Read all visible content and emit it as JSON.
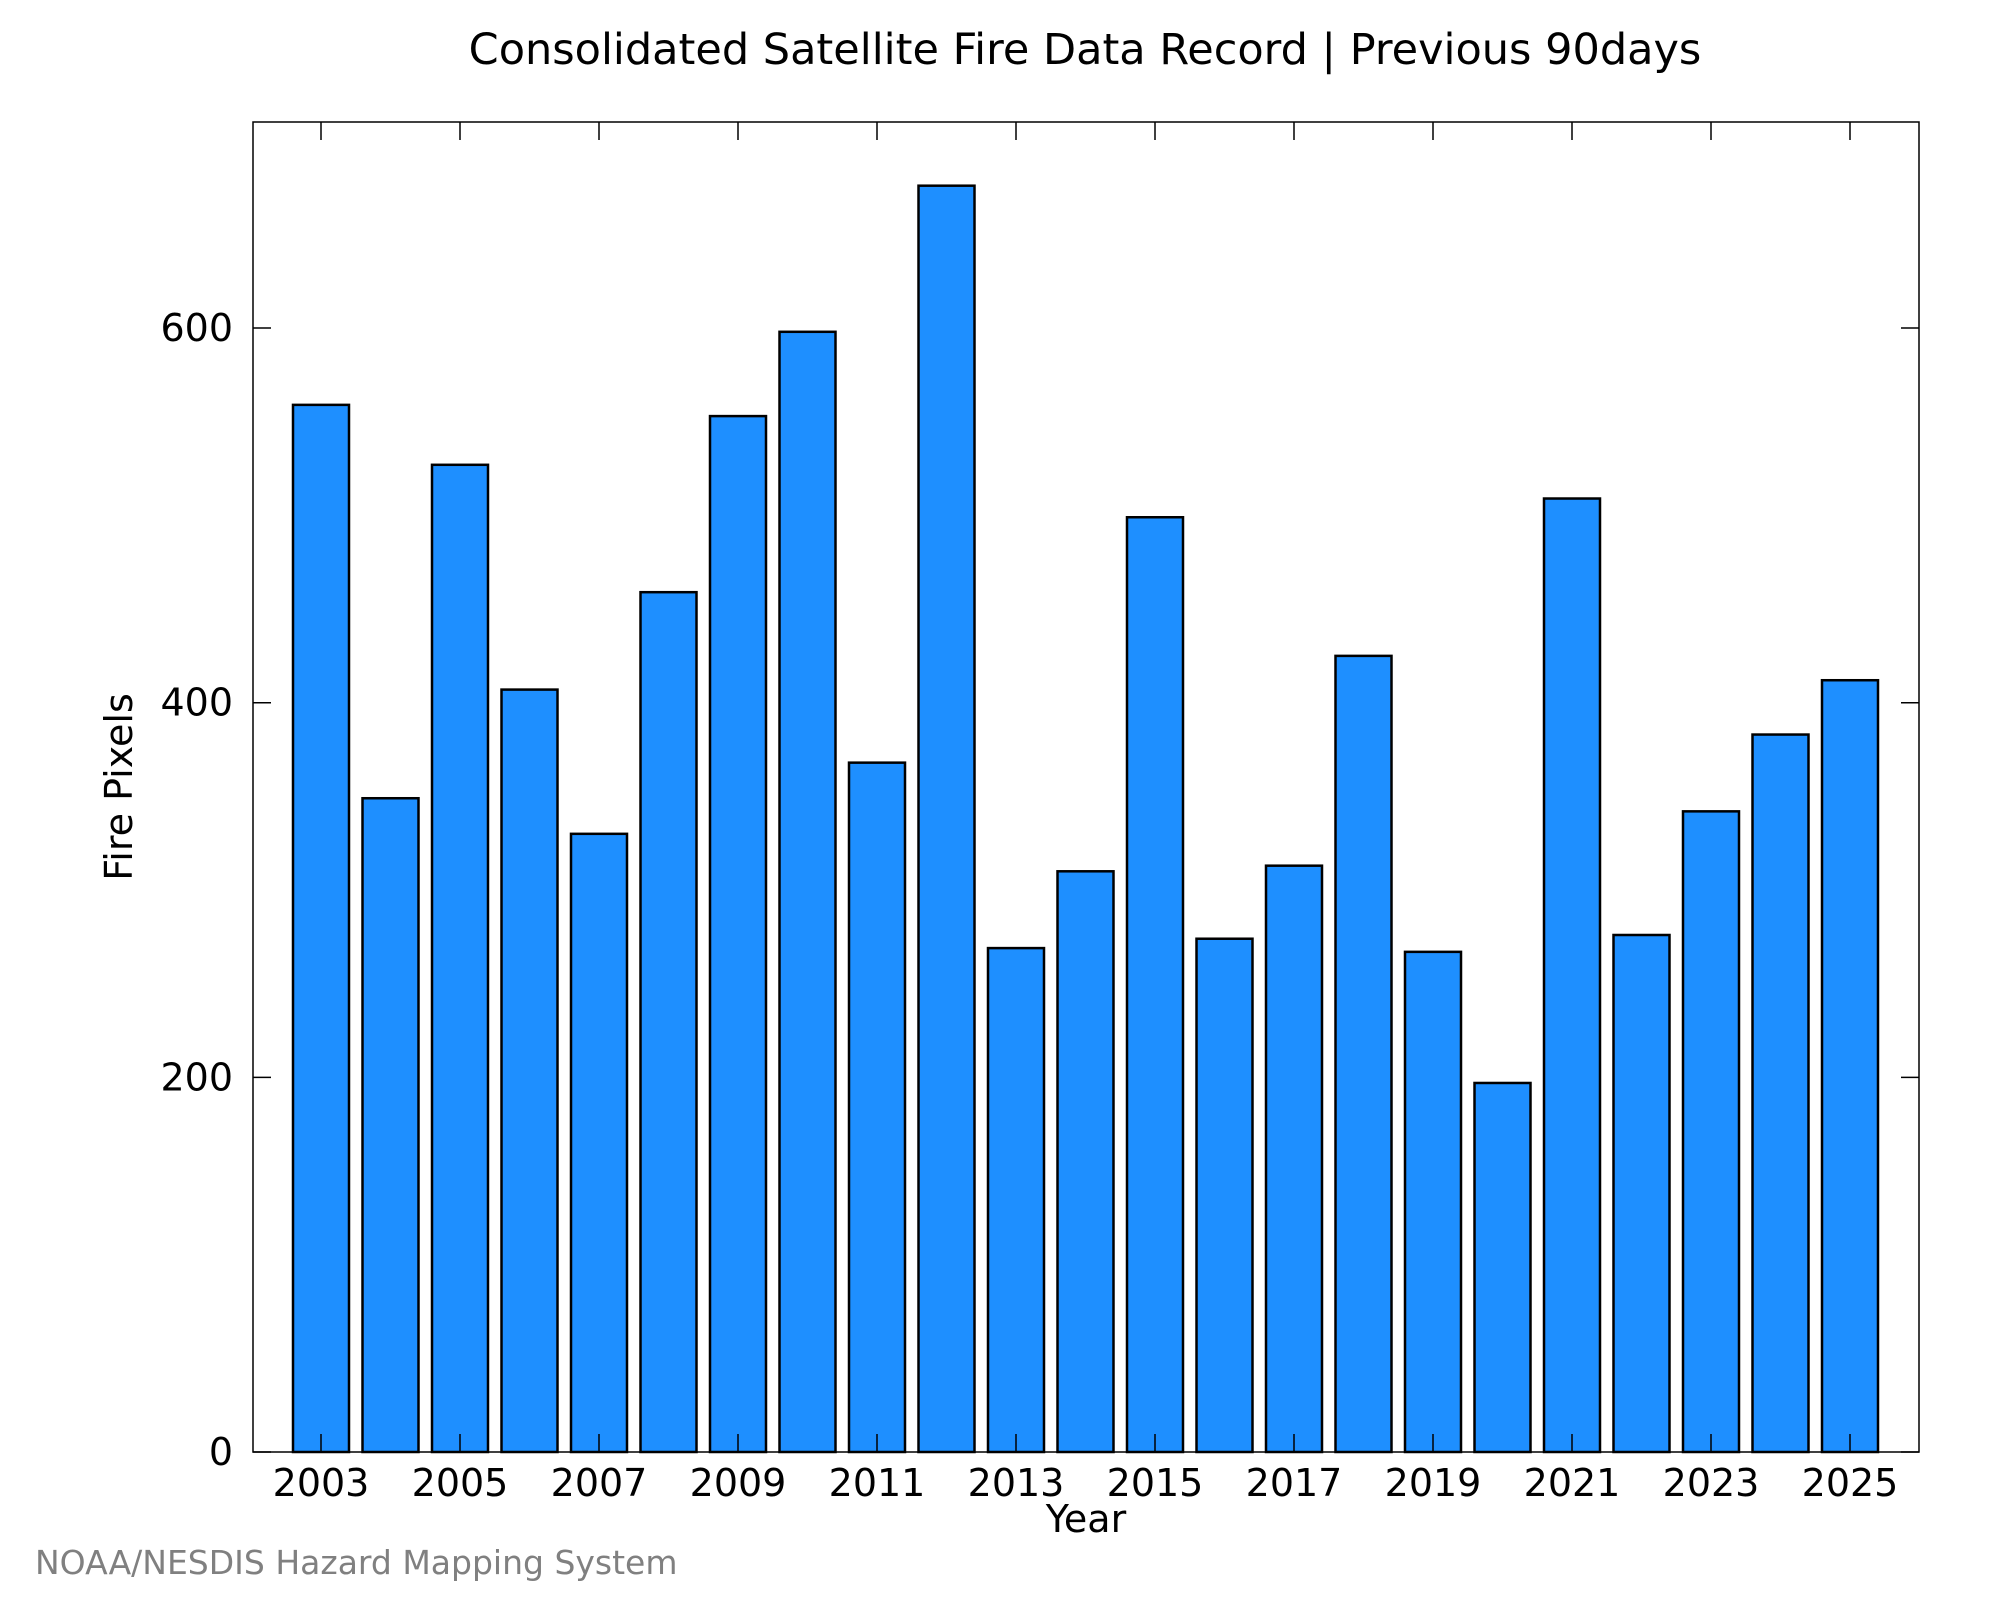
{
  "chart_data": {
    "type": "bar",
    "title": "Consolidated Satellite Fire Data Record | Previous 90days",
    "xlabel": "Year",
    "ylabel": "Fire Pixels",
    "categories": [
      "2003",
      "2004",
      "2005",
      "2006",
      "2007",
      "2008",
      "2009",
      "2010",
      "2011",
      "2012",
      "2013",
      "2014",
      "2015",
      "2016",
      "2017",
      "2018",
      "2019",
      "2020",
      "2021",
      "2022",
      "2023",
      "2024",
      "2025"
    ],
    "x_tick_labels": [
      "2003",
      "2005",
      "2007",
      "2009",
      "2011",
      "2013",
      "2015",
      "2017",
      "2019",
      "2021",
      "2023",
      "2025"
    ],
    "values": [
      559,
      349,
      527,
      407,
      330,
      459,
      553,
      598,
      368,
      676,
      269,
      310,
      499,
      274,
      313,
      425,
      267,
      197,
      509,
      276,
      342,
      383,
      412
    ],
    "ylim": [
      0,
      710
    ],
    "y_ticks": [
      0,
      200,
      400,
      600
    ],
    "grid": false,
    "bar_color": "#1e8fff",
    "bar_edge_color": "#000000"
  },
  "credit": "NOAA/NESDIS Hazard Mapping System"
}
